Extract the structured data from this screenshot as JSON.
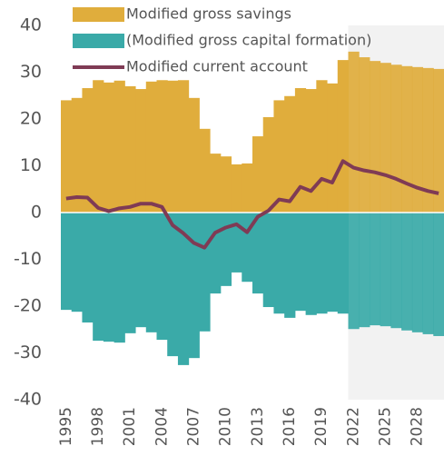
{
  "chart_data": {
    "type": "bar",
    "categories": [
      "1995",
      null,
      null,
      "1998",
      null,
      null,
      "2001",
      null,
      null,
      "2004",
      null,
      null,
      "2007",
      null,
      null,
      "2010",
      null,
      null,
      "2013",
      null,
      null,
      "2016",
      null,
      null,
      "2019",
      null,
      null,
      "2022",
      null,
      null,
      "2025",
      null,
      null,
      "2028",
      null,
      null
    ],
    "series": [
      {
        "name": "Modified gross savings",
        "color": "#e0ad3c",
        "type": "bar",
        "values": [
          24,
          24.5,
          26.6,
          28.3,
          27.8,
          28.2,
          27,
          26.4,
          28,
          28.3,
          28.2,
          28.3,
          24.5,
          17.9,
          12.6,
          12,
          10.3,
          10.5,
          16.3,
          20.4,
          24,
          24.9,
          26.6,
          26.4,
          28.3,
          27.6,
          32.6,
          34.4,
          33.2,
          32.4,
          32,
          31.6,
          31.3,
          31.1,
          30.9,
          30.7
        ]
      },
      {
        "name": "(Modified gross capital formation)",
        "color": "#3aaaa8",
        "type": "bar",
        "values": [
          -20.8,
          -21.2,
          -23.5,
          -27.4,
          -27.6,
          -27.8,
          -25.8,
          -24.5,
          -25.6,
          -27.2,
          -30.7,
          -32.6,
          -31.1,
          -25.4,
          -17.3,
          -15.7,
          -12.8,
          -14.8,
          -17.3,
          -20.2,
          -21.6,
          -22.5,
          -21,
          -21.9,
          -21.6,
          -21.2,
          -21.6,
          -24.9,
          -24.5,
          -24.1,
          -24.3,
          -24.7,
          -25.2,
          -25.6,
          -26,
          -26.4
        ]
      },
      {
        "name": "Modified current account",
        "color": "#7f3b55",
        "type": "line",
        "values": [
          3,
          3.3,
          3.2,
          1,
          0.3,
          0.9,
          1.2,
          1.9,
          1.9,
          1.2,
          -2.7,
          -4.4,
          -6.5,
          -7.5,
          -4.3,
          -3.2,
          -2.5,
          -4.2,
          -0.9,
          0.4,
          2.8,
          2.4,
          5.5,
          4.6,
          7.2,
          6.4,
          11,
          9.6,
          9,
          8.6,
          8,
          7.2,
          6.2,
          5.3,
          4.6,
          4.1
        ]
      }
    ],
    "ylim": [
      -40,
      40
    ],
    "yticks": [
      -40,
      -30,
      -20,
      -10,
      0,
      10,
      20,
      30,
      40
    ],
    "legend": "top-left"
  }
}
